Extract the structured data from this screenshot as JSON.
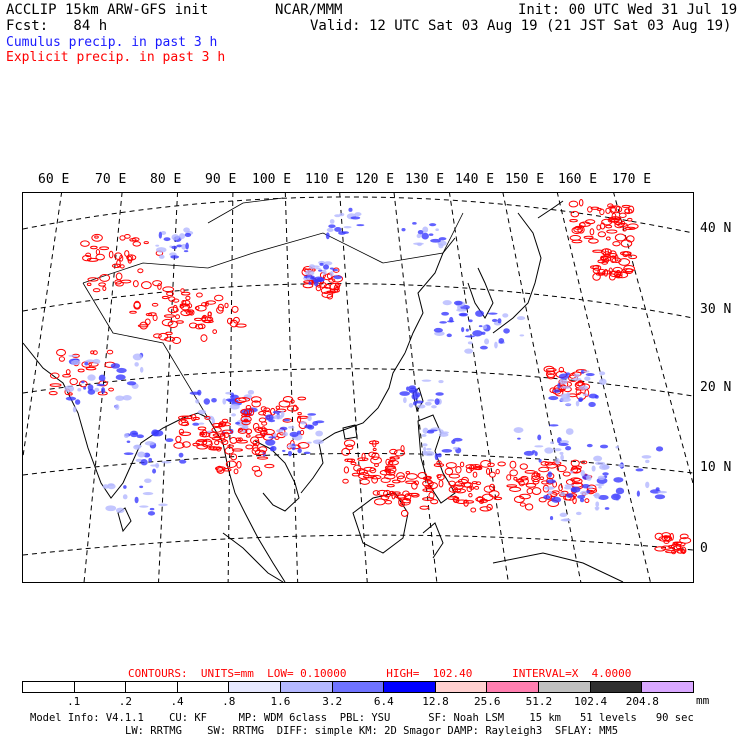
{
  "header": {
    "left1": "ACCLIP 15km ARW-GFS init",
    "center": "NCAR/MMM",
    "right1": "Init: 00 UTC Wed 31 Jul 19",
    "left2": "Fcst:   84 h",
    "right2": "Valid: 12 UTC Sat 03 Aug 19 (21 JST Sat 03 Aug 19)",
    "line3": "Cumulus precip. in past 3 h",
    "line4": "Explicit precip. in past 3 h",
    "line3_color": "#1a1aff",
    "line4_color": "#ff0000"
  },
  "map": {
    "lon_labels": [
      "60 E",
      "70 E",
      "80 E",
      "90 E",
      "100 E",
      "110 E",
      "120 E",
      "130 E",
      "140 E",
      "150 E",
      "160 E",
      "170 E"
    ],
    "lat_labels": [
      "40 N",
      "30 N",
      "20 N",
      "10 N",
      "0"
    ],
    "cumulus_color": "#3a3aff",
    "explicit_color": "#ff0000"
  },
  "contours": {
    "label": "CONTOURS:  UNITS=mm  LOW= 0.10000      HIGH=  102.40      INTERVAL=X  4.0000",
    "color": "#ff0000"
  },
  "legend": {
    "ticks": [
      ".1",
      ".2",
      ".4",
      ".8",
      "1.6",
      "3.2",
      "6.4",
      "12.8",
      "25.6",
      "51.2",
      "102.4",
      "204.8"
    ],
    "units": "mm",
    "colors": [
      "#ffffff",
      "#ffffff",
      "#ffffff",
      "#ffffff",
      "#e6e8ff",
      "#b4b8ff",
      "#6f73ff",
      "#0000ff",
      "#ffd0d0",
      "#ff7fb0",
      "#c0c0c0",
      "#303030",
      "#d9a8ff"
    ]
  },
  "footer": {
    "line1": "Model Info: V4.1.1    CU: KF     MP: WDM 6class  PBL: YSU      SF: Noah LSM    15 km   51 levels   90 sec",
    "line2": "LW: RRTMG    SW: RRTMG  DIFF: simple KM: 2D Smagor DAMP: Rayleigh3  SFLAY: MM5"
  }
}
